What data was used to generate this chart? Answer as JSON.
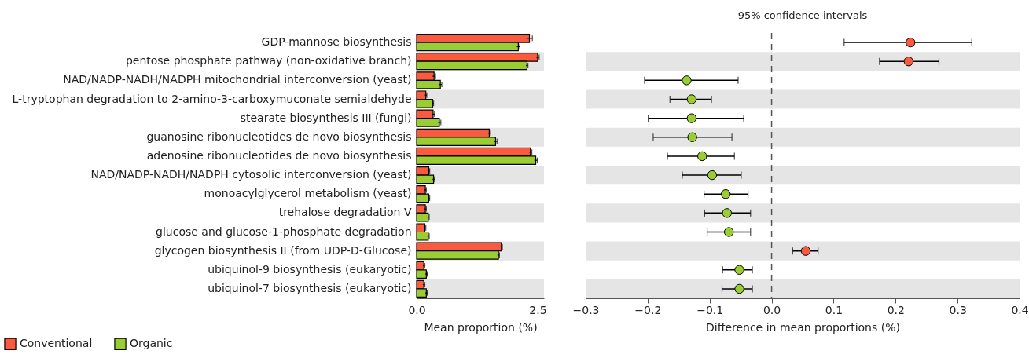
{
  "chart_data": [
    {
      "type": "bar",
      "orientation": "horizontal",
      "xlabel": "Mean proportion (%)",
      "categories": [
        "GDP-mannose biosynthesis",
        "pentose phosphate pathway (non-oxidative branch)",
        "NAD/NADP-NADH/NADPH mitochondrial interconversion (yeast)",
        "L-tryptophan degradation to 2-amino-3-carboxymuconate semialdehyde",
        "stearate biosynthesis III (fungi)",
        "guanosine ribonucleotides de novo biosynthesis",
        "adenosine ribonucleotides de novo biosynthesis",
        "NAD/NADP-NADH/NADPH cytosolic interconversion (yeast)",
        "monoacylglycerol metabolism (yeast)",
        "trehalose degradation V",
        "glucose and glucose-1-phosphate degradation",
        "glycogen biosynthesis II (from UDP-D-Glucose)",
        "ubiquinol-9 biosynthesis (eukaryotic)",
        "ubiquinol-7 biosynthesis (eukaryotic)"
      ],
      "series": [
        {
          "name": "Conventional",
          "color": "#fc5a3e",
          "values": [
            2.33,
            2.5,
            0.36,
            0.19,
            0.34,
            1.5,
            2.35,
            0.25,
            0.18,
            0.18,
            0.17,
            1.75,
            0.15,
            0.15
          ],
          "errors": [
            0.06,
            0.03,
            0.03,
            0.02,
            0.03,
            0.03,
            0.03,
            0.02,
            0.02,
            0.02,
            0.02,
            0.02,
            0.02,
            0.02
          ]
        },
        {
          "name": "Organic",
          "color": "#9acd32",
          "values": [
            2.1,
            2.28,
            0.49,
            0.33,
            0.47,
            1.63,
            2.46,
            0.35,
            0.25,
            0.24,
            0.24,
            1.69,
            0.2,
            0.2
          ],
          "errors": [
            0.03,
            0.02,
            0.03,
            0.02,
            0.03,
            0.03,
            0.03,
            0.02,
            0.02,
            0.02,
            0.02,
            0.02,
            0.02,
            0.02
          ]
        }
      ],
      "xlim": [
        0,
        2.63
      ],
      "xticks": [
        {
          "value": 0,
          "label": "0.0"
        },
        2.5
      ],
      "legend": "bottom left",
      "bands": [
        {
          "axis": "y",
          "from": "pentose phosphate pathway (non-oxidative branch)",
          "to": "pentose phosphate pathway (non-oxidative branch)",
          "color": "#e5e5e5"
        },
        {
          "axis": "y",
          "from": "L-tryptophan degradation to 2-amino-3-carboxymuconate semialdehyde",
          "to": "L-tryptophan degradation to 2-amino-3-carboxymuconate semialdehyde",
          "color": "#e5e5e5"
        },
        {
          "axis": "y",
          "from": "guanosine ribonucleotides de novo biosynthesis",
          "to": "guanosine ribonucleotides de novo biosynthesis",
          "color": "#e5e5e5"
        },
        {
          "axis": "y",
          "from": "NAD/NADP-NADH/NADPH cytosolic interconversion (yeast)",
          "to": "NAD/NADP-NADH/NADPH cytosolic interconversion (yeast)",
          "color": "#e5e5e5"
        },
        {
          "axis": "y",
          "from": "trehalose degradation V",
          "to": "trehalose degradation V",
          "color": "#e5e5e5"
        },
        {
          "axis": "y",
          "from": "glycogen biosynthesis II (from UDP-D-Glucose)",
          "to": "glycogen biosynthesis II (from UDP-D-Glucose)",
          "color": "#e5e5e5"
        },
        {
          "axis": "y",
          "from": "ubiquinol-7 biosynthesis (eukaryotic)",
          "to": "ubiquinol-7 biosynthesis (eukaryotic)",
          "color": "#e5e5e5"
        }
      ]
    },
    {
      "type": "scatter",
      "orientation": "horizontal",
      "title": "95% confidence intervals",
      "xlabel": "Difference in mean proportions (%)",
      "tick_labels": "x",
      "categories": [
        "GDP-mannose biosynthesis",
        "pentose phosphate pathway (non-oxidative branch)",
        "NAD/NADP-NADH/NADPH mitochondrial interconversion (yeast)",
        "L-tryptophan degradation to 2-amino-3-carboxymuconate semialdehyde",
        "stearate biosynthesis III (fungi)",
        "guanosine ribonucleotides de novo biosynthesis",
        "adenosine ribonucleotides de novo biosynthesis",
        "NAD/NADP-NADH/NADPH cytosolic interconversion (yeast)",
        "monoacylglycerol metabolism (yeast)",
        "trehalose degradation V",
        "glucose and glucose-1-phosphate degradation",
        "glycogen biosynthesis II (from UDP-D-Glucose)",
        "ubiquinol-9 biosynthesis (eukaryotic)",
        "ubiquinol-7 biosynthesis (eukaryotic)"
      ],
      "values": [
        0.224,
        0.221,
        -0.137,
        -0.129,
        -0.129,
        -0.128,
        -0.112,
        -0.096,
        -0.074,
        -0.072,
        -0.069,
        0.055,
        -0.052,
        -0.052
      ],
      "errors": [
        [
          0.117,
          0.323
        ],
        [
          0.174,
          0.27
        ],
        [
          -0.205,
          -0.054
        ],
        [
          -0.164,
          -0.097
        ],
        [
          -0.199,
          -0.045
        ],
        [
          -0.191,
          -0.064
        ],
        [
          -0.168,
          -0.06
        ],
        [
          -0.144,
          -0.049
        ],
        [
          -0.109,
          -0.038
        ],
        [
          -0.108,
          -0.034
        ],
        [
          -0.104,
          -0.034
        ],
        [
          0.034,
          0.075
        ],
        [
          -0.079,
          -0.031
        ],
        [
          -0.08,
          -0.031
        ]
      ],
      "colors": [
        "#fc5a3e",
        "#fc5a3e",
        "#9acd32",
        "#9acd32",
        "#9acd32",
        "#9acd32",
        "#9acd32",
        "#9acd32",
        "#9acd32",
        "#9acd32",
        "#9acd32",
        "#fc5a3e",
        "#9acd32",
        "#9acd32"
      ],
      "marker": "circle",
      "xlim": [
        -0.3,
        0.4
      ],
      "xticks": [
        {
          "value": -0.3,
          "label": "−0.3"
        },
        {
          "value": -0.2,
          "label": "−0.2"
        },
        {
          "value": -0.1,
          "label": "−0.1"
        },
        {
          "value": 0,
          "label": "0.0"
        },
        0.1,
        0.2,
        0.3,
        0.4
      ],
      "ref_lines": [
        {
          "axis": "x",
          "value": 0,
          "color": "#555555",
          "line_style": "dashed"
        }
      ],
      "bands": [
        {
          "axis": "y",
          "from": "pentose phosphate pathway (non-oxidative branch)",
          "to": "pentose phosphate pathway (non-oxidative branch)",
          "color": "#e5e5e5"
        },
        {
          "axis": "y",
          "from": "L-tryptophan degradation to 2-amino-3-carboxymuconate semialdehyde",
          "to": "L-tryptophan degradation to 2-amino-3-carboxymuconate semialdehyde",
          "color": "#e5e5e5"
        },
        {
          "axis": "y",
          "from": "guanosine ribonucleotides de novo biosynthesis",
          "to": "guanosine ribonucleotides de novo biosynthesis",
          "color": "#e5e5e5"
        },
        {
          "axis": "y",
          "from": "NAD/NADP-NADH/NADPH cytosolic interconversion (yeast)",
          "to": "NAD/NADP-NADH/NADPH cytosolic interconversion (yeast)",
          "color": "#e5e5e5"
        },
        {
          "axis": "y",
          "from": "trehalose degradation V",
          "to": "trehalose degradation V",
          "color": "#e5e5e5"
        },
        {
          "axis": "y",
          "from": "glycogen biosynthesis II (from UDP-D-Glucose)",
          "to": "glycogen biosynthesis II (from UDP-D-Glucose)",
          "color": "#e5e5e5"
        },
        {
          "axis": "y",
          "from": "ubiquinol-7 biosynthesis (eukaryotic)",
          "to": "ubiquinol-7 biosynthesis (eukaryotic)",
          "color": "#e5e5e5"
        }
      ]
    }
  ]
}
